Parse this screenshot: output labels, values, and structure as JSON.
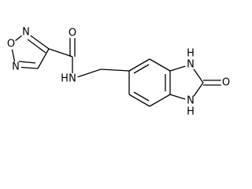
{
  "atoms": [
    "N",
    "O",
    "N",
    "O",
    "N",
    "H",
    "H",
    "N",
    "N",
    "H",
    "O"
  ]
}
